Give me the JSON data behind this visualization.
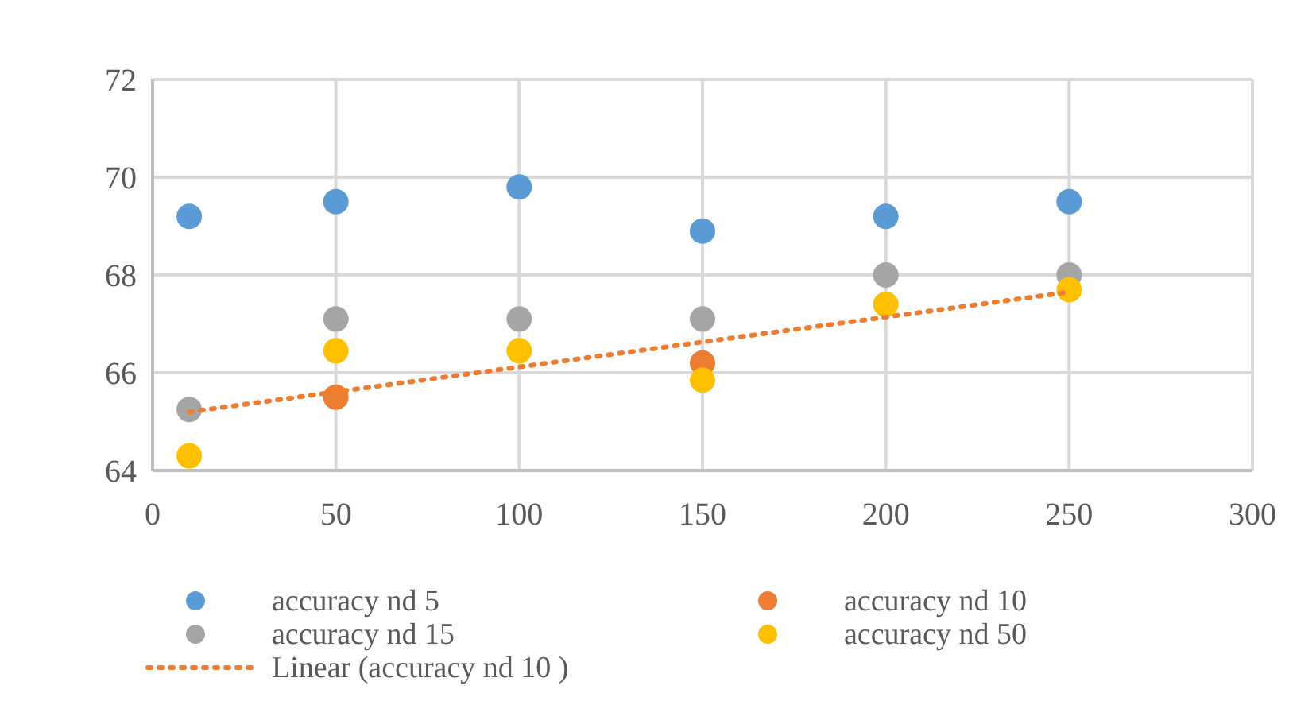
{
  "chart_data": {
    "type": "scatter",
    "xlim": [
      0,
      300
    ],
    "xticks": [
      0,
      50,
      100,
      150,
      200,
      250,
      300
    ],
    "ylim": [
      64,
      72
    ],
    "yticks": [
      64,
      66,
      68,
      70,
      72
    ],
    "grid": true,
    "legend": "bottom",
    "marker": "circle",
    "x": [
      10,
      50,
      100,
      150,
      200,
      250
    ],
    "series": [
      {
        "name": "accuracy nd 5",
        "color": "#5b9bd5",
        "values": [
          69.2,
          69.5,
          69.8,
          68.9,
          69.2,
          69.5
        ]
      },
      {
        "name": "accuracy nd 10",
        "color": "#ed7d31",
        "values": [
          null,
          65.5,
          null,
          66.2,
          null,
          null
        ]
      },
      {
        "name": "accuracy nd 15",
        "color": "#a5a5a5",
        "values": [
          65.25,
          67.1,
          67.1,
          67.1,
          68.0,
          68.0
        ]
      },
      {
        "name": "accuracy nd 50",
        "color": "#ffc000",
        "values": [
          64.3,
          66.45,
          66.45,
          65.85,
          67.4,
          67.7
        ]
      },
      {
        "name": "Linear (accuracy nd 10 )",
        "type": "line",
        "line_style": "dotted",
        "marker": "none",
        "color": "#ed7d31",
        "x": [
          10,
          250
        ],
        "values": [
          65.2,
          67.65
        ]
      }
    ]
  }
}
